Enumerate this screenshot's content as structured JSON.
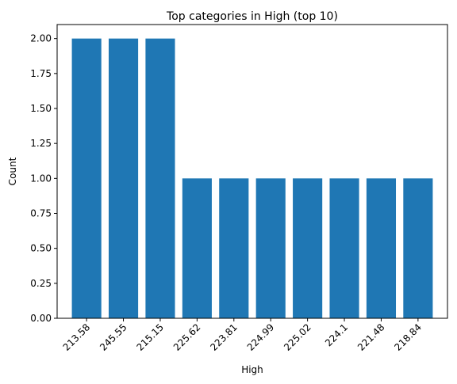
{
  "chart_data": {
    "type": "bar",
    "title": "Top categories in High (top 10)",
    "xlabel": "High",
    "ylabel": "Count",
    "categories": [
      "213.58",
      "245.55",
      "215.15",
      "225.62",
      "223.81",
      "224.99",
      "225.02",
      "224.1",
      "221.48",
      "218.84"
    ],
    "values": [
      2,
      2,
      2,
      1,
      1,
      1,
      1,
      1,
      1,
      1
    ],
    "ylim": [
      0,
      2.1
    ],
    "yticks": [
      "0.00",
      "0.25",
      "0.50",
      "0.75",
      "1.00",
      "1.25",
      "1.50",
      "1.75",
      "2.00"
    ],
    "bar_color": "#1f77b4",
    "grid": false
  }
}
